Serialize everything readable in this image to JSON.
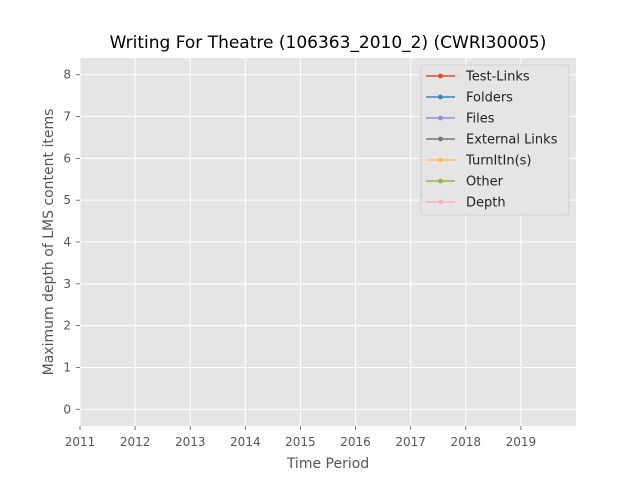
{
  "chart_data": {
    "type": "line",
    "title": "Writing For Theatre (106363_2010_2) (CWRI30005)",
    "xlabel": "Time Period",
    "ylabel": "Maximum depth of LMS content items",
    "xlim": [
      2011,
      2020
    ],
    "ylim": [
      -0.4,
      8.4
    ],
    "x_ticks": [
      "2011",
      "2012",
      "2013",
      "2014",
      "2015",
      "2016",
      "2017",
      "2018",
      "2019"
    ],
    "y_ticks": [
      "0",
      "1",
      "2",
      "3",
      "4",
      "5",
      "6",
      "7",
      "8"
    ],
    "grid": true,
    "legend_position": "top-right",
    "series": [
      {
        "name": "Test-Links",
        "color": "#E24A33",
        "values": []
      },
      {
        "name": "Folders",
        "color": "#348ABD",
        "values": []
      },
      {
        "name": "Files",
        "color": "#988ED5",
        "values": []
      },
      {
        "name": "External Links",
        "color": "#777777",
        "values": []
      },
      {
        "name": "TurnItIn(s)",
        "color": "#FBC15E",
        "values": []
      },
      {
        "name": "Other",
        "color": "#8EBA42",
        "values": []
      },
      {
        "name": "Depth",
        "color": "#FFB5B8",
        "values": []
      }
    ]
  }
}
